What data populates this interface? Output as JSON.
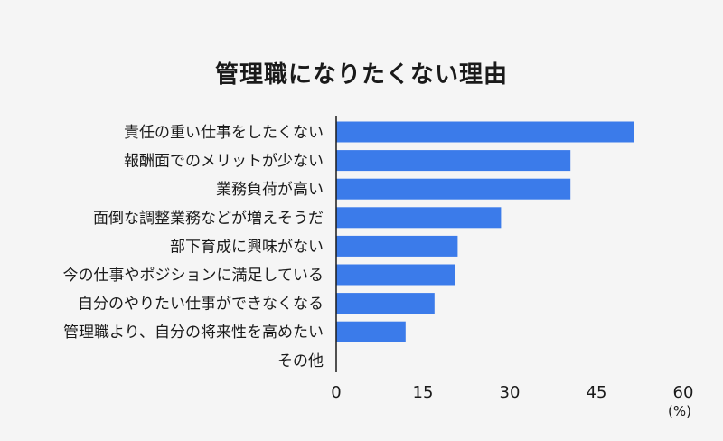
{
  "colors": {
    "background": "#f5f5f5",
    "bar": "#3b7bea",
    "axis": "#1a1a1a",
    "text": "#1a1a1a"
  },
  "chart_data": {
    "type": "bar",
    "orientation": "horizontal",
    "title": "管理職になりたくない理由",
    "categories": [
      "責任の重い仕事をしたくない",
      "報酬面でのメリットが少ない",
      "業務負荷が高い",
      "面倒な調整業務などが増えそうだ",
      "部下育成に興味がない",
      "今の仕事やポジションに満足している",
      "自分のやりたい仕事ができなくなる",
      "管理職より、自分の将来性を高めたい",
      "その他"
    ],
    "values": [
      51.5,
      40.5,
      40.5,
      28.5,
      21,
      20.5,
      17,
      12,
      0
    ],
    "xlim": [
      0,
      60
    ],
    "xticks": [
      "0",
      "15",
      "30",
      "45",
      "60"
    ],
    "xunit": "(%)",
    "grid": false,
    "legend": "none"
  }
}
